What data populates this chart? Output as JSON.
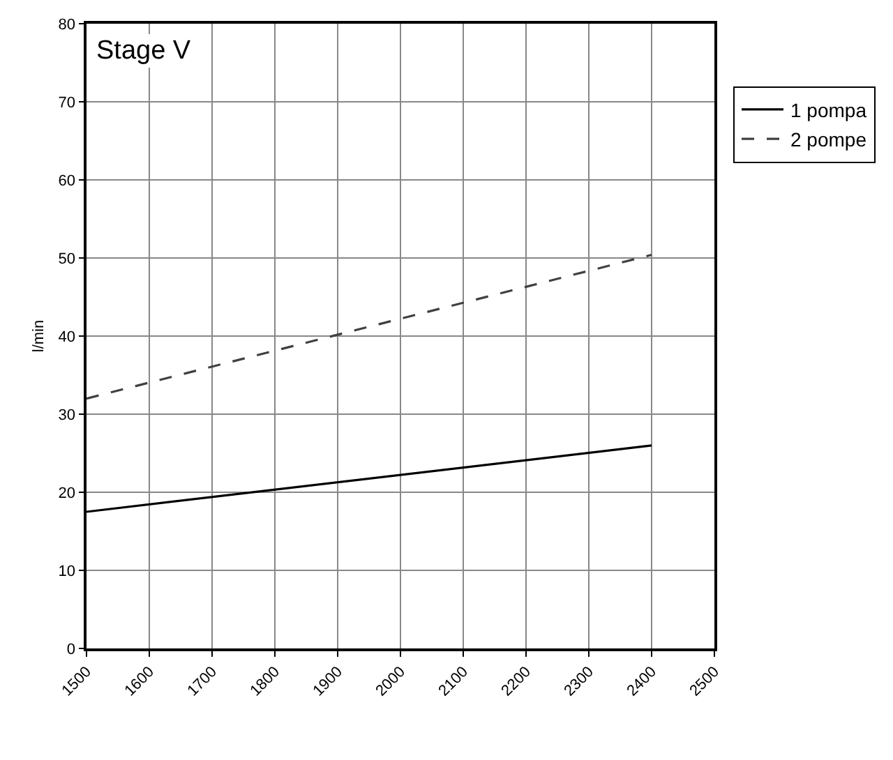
{
  "chart_data": {
    "type": "line",
    "ylabel": "l/min",
    "annotations": [
      "Stage V"
    ],
    "x": [
      1500,
      2400
    ],
    "series": [
      {
        "name": "1 pompa",
        "color": "#000000",
        "values": [
          17.5,
          26
        ],
        "line_style": "solid"
      },
      {
        "name": "2 pompe",
        "color": "#404040",
        "values": [
          32,
          50.4
        ],
        "line_style": "dashed"
      }
    ],
    "xlim": [
      1500,
      2500
    ],
    "xticks": [
      1500,
      1600,
      1700,
      1800,
      1900,
      2000,
      2100,
      2200,
      2300,
      2400,
      2500
    ],
    "ylim": [
      0,
      80
    ],
    "yticks": [
      0,
      10,
      20,
      30,
      40,
      50,
      60,
      70,
      80
    ],
    "grid": true,
    "legend": "right",
    "marker": "none"
  }
}
